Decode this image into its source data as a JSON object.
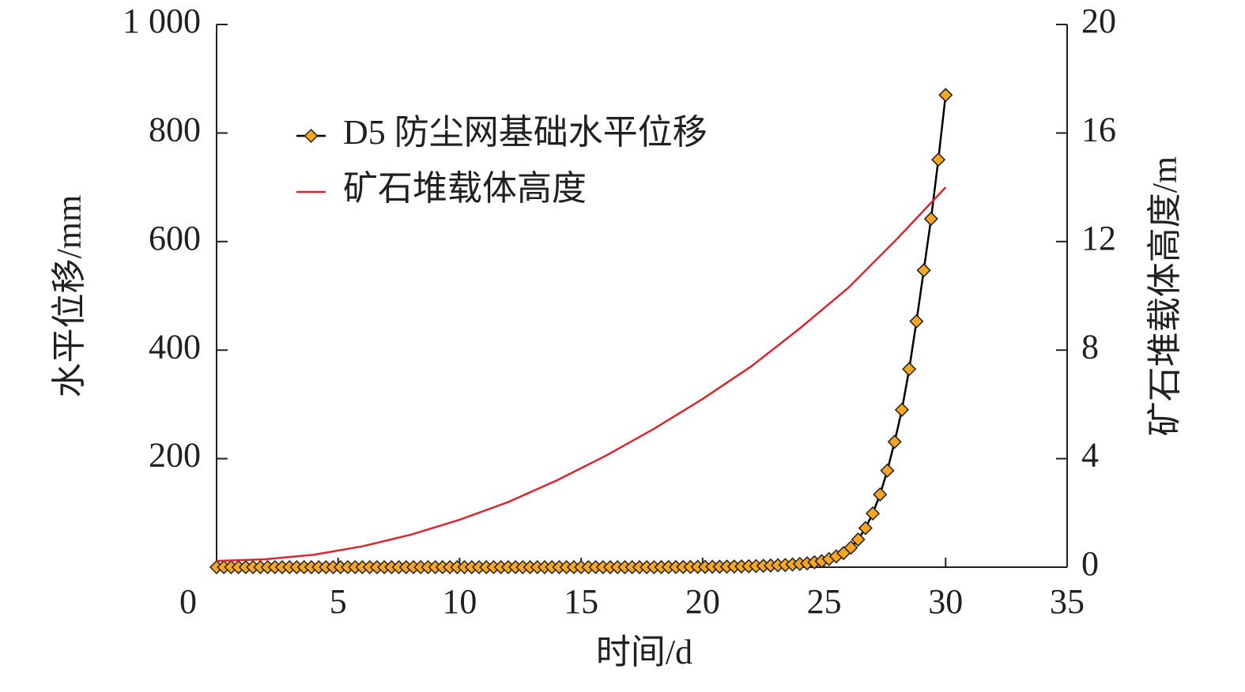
{
  "chart_data": {
    "type": "line",
    "xlabel": "时间/d",
    "ylabel": "水平位移/mm",
    "y2label": "矿石堆载体高度/m",
    "xlim": [
      0,
      35
    ],
    "xticks": [
      0,
      5,
      10,
      15,
      20,
      25,
      30,
      35
    ],
    "ylim": [
      0,
      1000
    ],
    "yticks": [
      200,
      400,
      600,
      800,
      {
        "value": 1000,
        "label": "1 000"
      }
    ],
    "y2lim": [
      0,
      20
    ],
    "y2ticks": [
      0,
      4,
      8,
      12,
      16,
      20
    ],
    "legend": "upper-left",
    "series": [
      {
        "name": "D5 防尘网基础水平位移",
        "color": "#f5a623",
        "line_color": "#000000",
        "marker": "diamond",
        "x": [
          0,
          0.3,
          0.6,
          0.9,
          1.2,
          1.5,
          1.8,
          2.1,
          2.4,
          2.7,
          3,
          3.3,
          3.6,
          3.9,
          4.2,
          4.5,
          4.8,
          5.1,
          5.4,
          5.7,
          6,
          6.3,
          6.6,
          6.9,
          7.2,
          7.5,
          7.8,
          8.1,
          8.4,
          8.7,
          9,
          9.3,
          9.6,
          9.9,
          10.2,
          10.5,
          10.8,
          11.1,
          11.4,
          11.7,
          12,
          12.3,
          12.6,
          12.9,
          13.2,
          13.5,
          13.8,
          14.1,
          14.4,
          14.7,
          15,
          15.3,
          15.6,
          15.9,
          16.2,
          16.5,
          16.8,
          17.1,
          17.4,
          17.7,
          18,
          18.3,
          18.6,
          18.9,
          19.2,
          19.5,
          19.8,
          20.1,
          20.4,
          20.7,
          21,
          21.3,
          21.6,
          21.9,
          22.2,
          22.5,
          22.8,
          23.1,
          23.4,
          23.7,
          24,
          24.3,
          24.6,
          24.9,
          25.2,
          25.5,
          25.8,
          26.1,
          26.4,
          26.7,
          27,
          27.3,
          27.6,
          27.9,
          28.2,
          28.5,
          28.8,
          29.1,
          29.4,
          29.7,
          30
        ],
        "values": [
          0,
          0,
          0,
          0,
          0,
          0,
          0,
          0,
          0,
          0,
          0,
          0,
          0,
          0,
          0,
          0,
          0,
          0,
          0,
          0,
          0,
          0,
          0,
          0,
          0,
          0,
          0,
          0,
          0,
          0,
          0,
          0,
          0,
          0,
          0,
          0,
          0,
          0,
          0,
          0,
          0,
          0,
          0,
          0,
          0,
          0,
          0,
          0,
          0,
          0,
          0,
          0,
          0,
          0,
          0,
          0,
          0,
          0,
          0,
          0,
          0,
          0.1,
          0.2,
          0.2,
          0.3,
          0.4,
          0.5,
          0.6,
          0.7,
          0.8,
          1,
          1.2,
          1.4,
          1.7,
          2,
          2.5,
          3,
          3.5,
          4,
          5,
          6,
          7,
          9,
          11,
          15,
          20,
          26,
          36,
          51,
          72,
          99,
          134,
          178,
          231,
          290,
          365,
          453,
          547,
          642,
          751,
          870
        ]
      },
      {
        "name": "矿石堆载体高度",
        "color": "#d9262e",
        "axis": "y2",
        "x": [
          0,
          2,
          4,
          6,
          8,
          10,
          12,
          14,
          16,
          18,
          20,
          22,
          24,
          26,
          28,
          30
        ],
        "values": [
          0.23,
          0.29,
          0.46,
          0.77,
          1.2,
          1.75,
          2.4,
          3.2,
          4.1,
          5.1,
          6.2,
          7.4,
          8.8,
          10.3,
          12.1,
          14.0
        ]
      }
    ]
  }
}
